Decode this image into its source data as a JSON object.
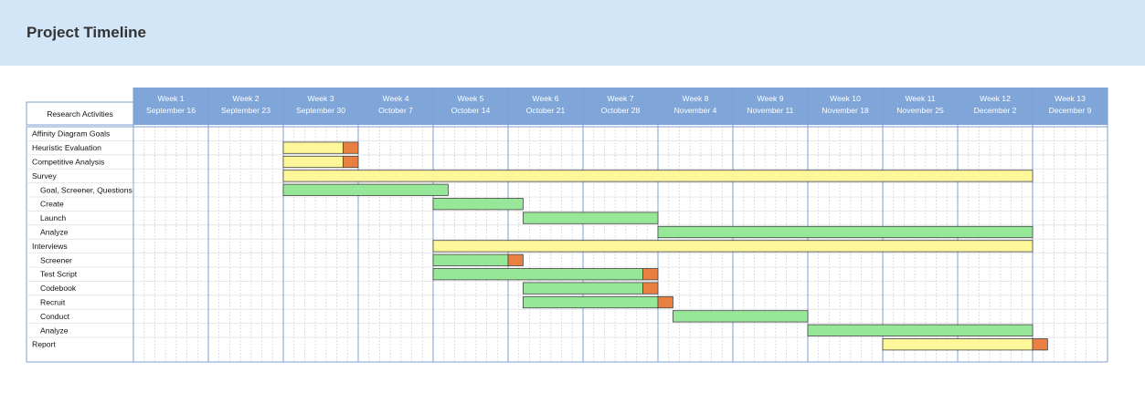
{
  "page": {
    "title": "Project Timeline"
  },
  "colors": {
    "header_bg": "#d3e6f7",
    "week_header": "#7fa5d9",
    "grid_blue": "#7c9fcf",
    "grid_dotted": "#c9c9c9",
    "bar_yellow": "#fdf79a",
    "bar_green": "#96e898",
    "bar_orange": "#e98042"
  },
  "chart_data": {
    "type": "gantt",
    "corner_label": "Research Activities",
    "weeks": [
      {
        "label": "Week 1",
        "date": "September 16"
      },
      {
        "label": "Week 2",
        "date": "September 23"
      },
      {
        "label": "Week 3",
        "date": "September 30"
      },
      {
        "label": "Week 4",
        "date": "October 7"
      },
      {
        "label": "Week 5",
        "date": "October 14"
      },
      {
        "label": "Week 6",
        "date": "October 21"
      },
      {
        "label": "Week 7",
        "date": "October 28"
      },
      {
        "label": "Week 8",
        "date": "November 4"
      },
      {
        "label": "Week 9",
        "date": "November 11"
      },
      {
        "label": "Week 10",
        "date": "November 18"
      },
      {
        "label": "Week 11",
        "date": "November 25"
      },
      {
        "label": "Week 12",
        "date": "December 2"
      },
      {
        "label": "Week 13",
        "date": "December 9"
      }
    ],
    "activities": [
      {
        "label": "Affinity Diagram Goals",
        "indent": 0,
        "bars": []
      },
      {
        "label": "Heuristic Evaluation",
        "indent": 0,
        "bars": [
          {
            "start": 3.0,
            "end": 3.8,
            "color": "yellow"
          },
          {
            "start": 3.8,
            "end": 4.0,
            "color": "orange"
          }
        ]
      },
      {
        "label": "Competitive Analysis",
        "indent": 0,
        "bars": [
          {
            "start": 3.0,
            "end": 3.8,
            "color": "yellow"
          },
          {
            "start": 3.8,
            "end": 4.0,
            "color": "orange"
          }
        ]
      },
      {
        "label": "Survey",
        "indent": 0,
        "bars": [
          {
            "start": 3.0,
            "end": 13.0,
            "color": "yellow"
          }
        ]
      },
      {
        "label": "Goal, Screener, Questions",
        "indent": 1,
        "bars": [
          {
            "start": 3.0,
            "end": 5.2,
            "color": "green"
          }
        ]
      },
      {
        "label": "Create",
        "indent": 1,
        "bars": [
          {
            "start": 5.0,
            "end": 6.2,
            "color": "green"
          }
        ]
      },
      {
        "label": "Launch",
        "indent": 1,
        "bars": [
          {
            "start": 6.2,
            "end": 8.0,
            "color": "green"
          }
        ]
      },
      {
        "label": "Analyze",
        "indent": 1,
        "bars": [
          {
            "start": 8.0,
            "end": 13.0,
            "color": "green"
          }
        ]
      },
      {
        "label": "Interviews",
        "indent": 0,
        "bars": [
          {
            "start": 5.0,
            "end": 13.0,
            "color": "yellow"
          }
        ]
      },
      {
        "label": "Screener",
        "indent": 1,
        "bars": [
          {
            "start": 5.0,
            "end": 6.0,
            "color": "green"
          },
          {
            "start": 6.0,
            "end": 6.2,
            "color": "orange"
          }
        ]
      },
      {
        "label": "Test Script",
        "indent": 1,
        "bars": [
          {
            "start": 5.0,
            "end": 7.8,
            "color": "green"
          },
          {
            "start": 7.8,
            "end": 8.0,
            "color": "orange"
          }
        ]
      },
      {
        "label": "Codebook",
        "indent": 1,
        "bars": [
          {
            "start": 6.2,
            "end": 7.8,
            "color": "green"
          },
          {
            "start": 7.8,
            "end": 8.0,
            "color": "orange"
          }
        ]
      },
      {
        "label": "Recruit",
        "indent": 1,
        "bars": [
          {
            "start": 6.2,
            "end": 8.0,
            "color": "green"
          },
          {
            "start": 8.0,
            "end": 8.2,
            "color": "orange"
          }
        ]
      },
      {
        "label": "Conduct",
        "indent": 1,
        "bars": [
          {
            "start": 8.2,
            "end": 10.0,
            "color": "green"
          }
        ]
      },
      {
        "label": "Analyze",
        "indent": 1,
        "bars": [
          {
            "start": 10.0,
            "end": 13.0,
            "color": "green"
          }
        ]
      },
      {
        "label": "Report",
        "indent": 0,
        "bars": [
          {
            "start": 11.0,
            "end": 13.0,
            "color": "yellow"
          },
          {
            "start": 13.0,
            "end": 13.2,
            "color": "orange"
          }
        ]
      }
    ]
  }
}
